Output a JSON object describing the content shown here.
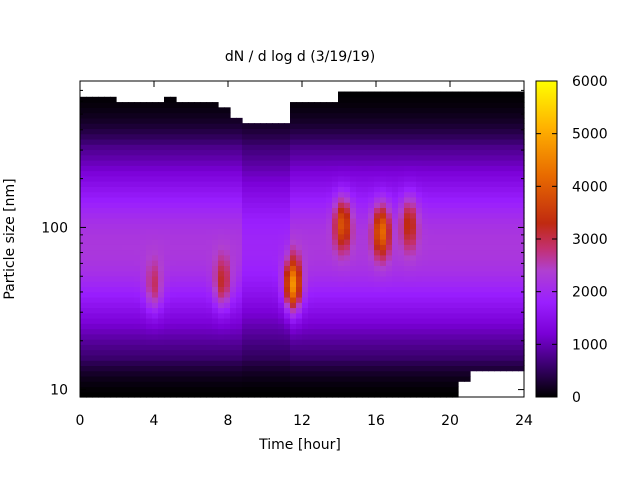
{
  "chart_data": {
    "type": "heatmap",
    "title": "dN / d log d (3/19/19)",
    "xlabel": "Time [hour]",
    "ylabel": "Particle size [nm]",
    "xlim": [
      0,
      24
    ],
    "x_ticks": [
      0,
      4,
      8,
      12,
      16,
      20,
      24
    ],
    "x_tick_labels": [
      "0",
      "4",
      "8",
      "12",
      "16",
      "20",
      "24"
    ],
    "y_scale": "log",
    "ylim_nm": [
      9,
      800
    ],
    "y_ticks": [
      10,
      100
    ],
    "y_tick_labels": [
      "10",
      "100"
    ],
    "colorbar": {
      "range": [
        0,
        6000
      ],
      "ticks": [
        0,
        1000,
        2000,
        3000,
        4000,
        5000,
        6000
      ],
      "tick_labels": [
        "0",
        "1000",
        "2000",
        "3000",
        "4000",
        "5000",
        "6000"
      ],
      "palette_stops": [
        "#000000",
        "#3a006e",
        "#7a00d6",
        "#9a1fff",
        "#b040d0",
        "#c33070",
        "#c02a10",
        "#e86a00",
        "#ffb000",
        "#ffff00"
      ]
    },
    "description_peaks": [
      {
        "hour": 4.0,
        "size_nm": 45,
        "value": 2700
      },
      {
        "hour": 7.7,
        "size_nm": 47,
        "value": 3000
      },
      {
        "hour": 11.5,
        "size_nm": 45,
        "value": 4500
      },
      {
        "hour": 14.2,
        "size_nm": 105,
        "value": 3700
      },
      {
        "hour": 16.3,
        "size_nm": 95,
        "value": 4000
      },
      {
        "hour": 17.8,
        "size_nm": 105,
        "value": 3200
      }
    ]
  }
}
